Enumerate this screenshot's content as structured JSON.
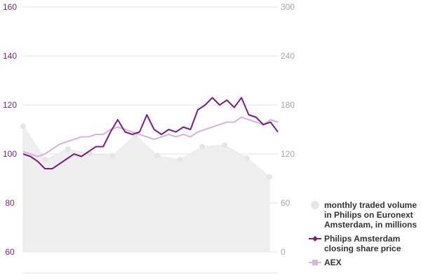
{
  "chart_data": {
    "type": "line",
    "title": "",
    "axes": {
      "left": {
        "label": "",
        "ticks": [
          60,
          80,
          100,
          120,
          140,
          160
        ],
        "range": [
          60,
          160
        ],
        "color": "#7b1f7d"
      },
      "right": {
        "label": "",
        "ticks": [
          0,
          60,
          120,
          180,
          240,
          300
        ],
        "range": [
          0,
          300
        ],
        "color": "#a8a8a8"
      }
    },
    "grid": true,
    "legend_position": "right-bottom",
    "series": [
      {
        "name": "monthly traded volume in Philips on Euronext Amsterdam, in millions",
        "type": "area",
        "axis": "right",
        "color": "#eeeeee",
        "values": [
          154,
          113,
          126,
          120,
          118,
          143,
          118,
          113,
          129,
          131,
          115,
          92
        ]
      },
      {
        "name": "Philips Amsterdam closing share price",
        "type": "line",
        "axis": "left",
        "color": "#7b1f7d",
        "values": [
          100,
          99,
          97,
          94,
          94,
          96,
          98,
          100,
          99,
          101,
          103,
          103,
          109,
          114,
          109,
          108,
          109,
          116,
          110,
          108,
          110,
          109,
          111,
          110,
          118,
          120,
          123,
          120,
          122,
          119,
          123,
          116,
          115,
          112,
          113,
          109
        ]
      },
      {
        "name": "AEX",
        "type": "line",
        "axis": "left",
        "color": "#d6b6d9",
        "values": [
          101,
          100,
          99,
          100,
          102,
          104,
          105,
          106,
          107,
          107,
          108,
          108,
          110,
          111,
          110,
          109,
          108,
          107,
          106,
          107,
          108,
          107,
          108,
          107,
          109,
          110,
          111,
          112,
          113,
          113,
          115,
          114,
          113,
          112,
          114,
          113
        ]
      }
    ]
  },
  "axis_labels": {
    "left": [
      "160",
      "140",
      "120",
      "100",
      "80",
      "60"
    ],
    "right": [
      "300",
      "240",
      "180",
      "120",
      "60",
      "0"
    ]
  },
  "legend": [
    {
      "label": "monthly traded volume in Philips on Euronext Amsterdam, in millions",
      "color": "#e6e6e6",
      "marker": "circle"
    },
    {
      "label": "Philips Amsterdam closing share price",
      "color": "#7b1f7d",
      "marker": "diamond-line"
    },
    {
      "label": "AEX",
      "color": "#d6b6d9",
      "marker": "square-line"
    }
  ]
}
